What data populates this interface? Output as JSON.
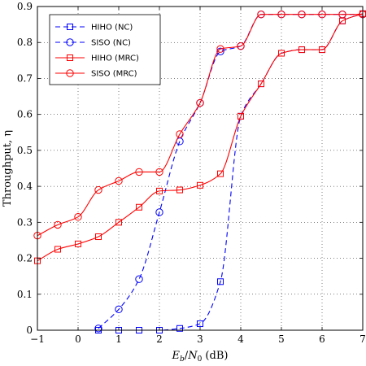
{
  "chart_data": {
    "type": "line",
    "xlabel": "E_b/N_0 (dB)",
    "ylabel": "Throughput, η",
    "xlim": [
      -1,
      7
    ],
    "ylim": [
      0,
      0.9
    ],
    "xticks": [
      "-1",
      "0",
      "1",
      "2",
      "3",
      "4",
      "5",
      "6",
      "7"
    ],
    "yticks": [
      "0",
      "0.1",
      "0.2",
      "0.3",
      "0.4",
      "0.5",
      "0.6",
      "0.7",
      "0.8",
      "0.9"
    ],
    "grid": true,
    "legend_position": "top-left",
    "series": [
      {
        "name": "HIHO (NC)",
        "color": "#0000ff",
        "dash": true,
        "marker": "square",
        "x": [
          0.5,
          1,
          1.5,
          2,
          2.5,
          3,
          3.5,
          4,
          4.5,
          5,
          5.5,
          6,
          6.5,
          7
        ],
        "y": [
          0.0,
          0.0,
          0.0,
          0.0,
          0.005,
          0.018,
          0.135,
          0.595,
          0.685,
          0.77,
          0.78,
          0.78,
          0.86,
          0.88
        ]
      },
      {
        "name": "SISO (NC)",
        "color": "#0000ff",
        "dash": true,
        "marker": "circle",
        "x": [
          0.5,
          1,
          1.5,
          2,
          2.5,
          3,
          3.5,
          4,
          4.5,
          5,
          5.5,
          6,
          6.5,
          7
        ],
        "y": [
          0.005,
          0.058,
          0.142,
          0.328,
          0.525,
          0.632,
          0.775,
          0.79,
          0.878,
          0.878,
          0.878,
          0.878,
          0.878,
          0.878
        ]
      },
      {
        "name": "HIHO (MRC)",
        "color": "#ff0000",
        "dash": false,
        "marker": "square",
        "x": [
          -1,
          -0.5,
          0,
          0.5,
          1,
          1.5,
          2,
          2.5,
          3,
          3.5,
          4,
          4.5,
          5,
          5.5,
          6,
          6.5,
          7
        ],
        "y": [
          0.193,
          0.225,
          0.24,
          0.26,
          0.3,
          0.342,
          0.387,
          0.39,
          0.403,
          0.435,
          0.595,
          0.685,
          0.77,
          0.78,
          0.78,
          0.86,
          0.88
        ]
      },
      {
        "name": "SISO (MRC)",
        "color": "#ff0000",
        "dash": false,
        "marker": "circle",
        "x": [
          -1,
          -0.5,
          0,
          0.5,
          1,
          1.5,
          2,
          2.5,
          3,
          3.5,
          4,
          4.5,
          5,
          5.5,
          6,
          6.5,
          7
        ],
        "y": [
          0.263,
          0.293,
          0.315,
          0.39,
          0.415,
          0.44,
          0.44,
          0.545,
          0.632,
          0.782,
          0.79,
          0.878,
          0.878,
          0.878,
          0.878,
          0.878,
          0.878
        ]
      }
    ]
  }
}
